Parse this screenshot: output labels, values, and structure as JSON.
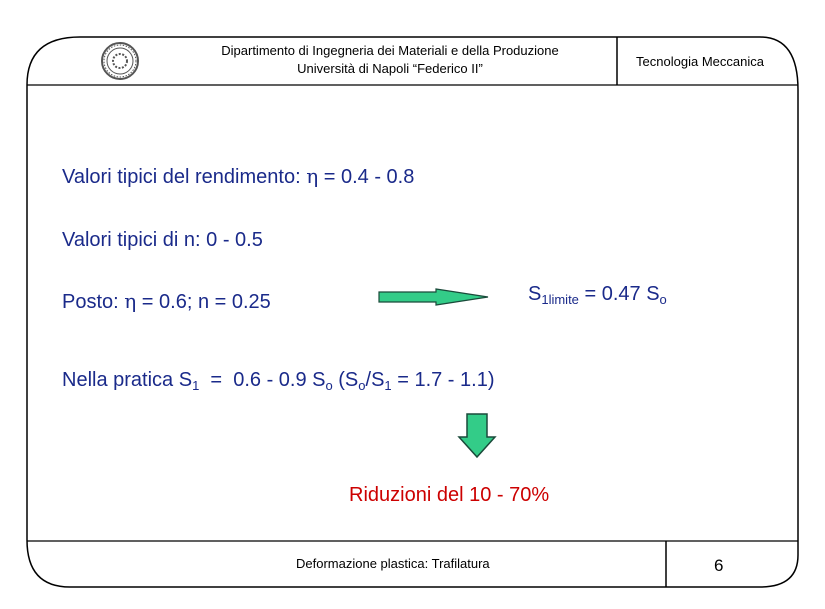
{
  "header": {
    "dept_line1": "Dipartimento di Ingegneria dei Materiali e della Produzione",
    "dept_line2": "Università di Napoli “Federico II”",
    "course": "Tecnologia Meccanica",
    "logo": "university-seal-icon"
  },
  "body": {
    "line1": {
      "prefix": "Valori tipici del rendimento: ",
      "symbol": "η",
      "suffix": " = 0.4 - 0.8"
    },
    "line2": {
      "prefix": "Valori tipici di n: ",
      "value": "0 - 0.5"
    },
    "line3": {
      "prefix": "Posto: ",
      "symbol": "η",
      "suffix": " = 0.6; n = 0.25",
      "result_main": "S",
      "result_sub": "1limite",
      "result_rest": " = 0.47 S",
      "result_sub2": "o"
    },
    "line4": {
      "t1": "Nella pratica S",
      "s1": "1",
      "t2": "  =  0.6 - 0.9 S",
      "s2": "o",
      "t3": " (S",
      "s3": "o",
      "t4": "/S",
      "s4": "1",
      "t5": " = 1.7 - 1.1)"
    },
    "conclusion": "Riduzioni del 10 - 70%"
  },
  "footer": {
    "title": "Deformazione plastica: Trafilatura",
    "page": "6"
  },
  "colors": {
    "text": "#1a2a8a",
    "highlight": "#cc0000",
    "arrow_fill": "#33cc88",
    "arrow_stroke": "#1a4a3a"
  }
}
